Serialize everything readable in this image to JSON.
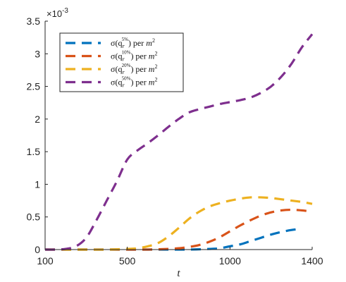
{
  "chart_data": {
    "type": "line",
    "title": "",
    "xlabel": "t",
    "ylabel": "",
    "xlim": [
      100,
      1400
    ],
    "ylim": [
      0,
      0.0035
    ],
    "xticks": [
      100,
      500,
      1000,
      1400
    ],
    "xtick_labels": [
      "100",
      "500",
      "1000",
      "1400"
    ],
    "yticks": [
      0,
      0.0005,
      0.001,
      0.0015,
      0.002,
      0.0025,
      0.003,
      0.0035
    ],
    "ytick_labels": [
      "0",
      "0.5",
      "1",
      "1.5",
      "2",
      "2.5",
      "3",
      "3.5"
    ],
    "y_exponent_label": "×10",
    "y_exponent_power": "-3",
    "grid": false,
    "legend_position": "top-left",
    "series": [
      {
        "name": "σ(q_r^{5%}) per m^2",
        "legend_base": "σ(q",
        "legend_sub": "r",
        "legend_sup": "5%",
        "legend_tail": ") per ",
        "legend_unit": "m",
        "legend_unit_sup": "2",
        "color": "#0072BD",
        "x": [
          100,
          200,
          300,
          400,
          500,
          600,
          700,
          800,
          900,
          950,
          1000,
          1050,
          1100,
          1150,
          1200,
          1250,
          1300,
          1350
        ],
        "y": [
          0,
          0,
          0,
          0,
          0,
          0,
          0,
          0,
          1e-05,
          2e-05,
          5e-05,
          8e-05,
          0.00013,
          0.00018,
          0.00023,
          0.00027,
          0.0003,
          0.00032
        ]
      },
      {
        "name": "σ(q_r^{10%}) per m^2",
        "legend_base": "σ(q",
        "legend_sub": "r",
        "legend_sup": "10%",
        "legend_tail": ") per ",
        "legend_unit": "m",
        "legend_unit_sup": "2",
        "color": "#D95319",
        "x": [
          100,
          200,
          300,
          400,
          500,
          600,
          700,
          750,
          800,
          850,
          900,
          950,
          1000,
          1050,
          1100,
          1150,
          1200,
          1250,
          1300,
          1350,
          1400
        ],
        "y": [
          0,
          0,
          0,
          0,
          0,
          0,
          1e-05,
          2e-05,
          4e-05,
          7e-05,
          0.00012,
          0.00019,
          0.00028,
          0.00037,
          0.00045,
          0.00052,
          0.00057,
          0.0006,
          0.00061,
          0.0006,
          0.00058
        ]
      },
      {
        "name": "σ(q_r^{20%}) per m^2",
        "legend_base": "σ(q",
        "legend_sub": "r",
        "legend_sup": "20%",
        "legend_tail": ") per ",
        "legend_unit": "m",
        "legend_unit_sup": "2",
        "color": "#EDB120",
        "x": [
          100,
          200,
          300,
          400,
          500,
          550,
          600,
          650,
          700,
          750,
          800,
          850,
          900,
          950,
          1000,
          1050,
          1100,
          1150,
          1200,
          1250,
          1300,
          1350,
          1400
        ],
        "y": [
          0,
          0,
          0,
          0,
          1e-05,
          2e-05,
          5e-05,
          0.0001,
          0.0002,
          0.00033,
          0.00047,
          0.00058,
          0.00066,
          0.00071,
          0.00075,
          0.00078,
          0.0008,
          0.0008,
          0.00079,
          0.00077,
          0.00075,
          0.00073,
          0.0007
        ]
      },
      {
        "name": "σ(q_r^{50%}) per m^2",
        "legend_base": "σ(q",
        "legend_sub": "r",
        "legend_sup": "50%",
        "legend_tail": ") per ",
        "legend_unit": "m",
        "legend_unit_sup": "2",
        "color": "#7E2F8E",
        "x": [
          100,
          150,
          200,
          250,
          300,
          350,
          400,
          450,
          500,
          550,
          600,
          650,
          700,
          750,
          800,
          850,
          900,
          950,
          1000,
          1050,
          1100,
          1150,
          1200,
          1250,
          1300,
          1350,
          1400
        ],
        "y": [
          0,
          0,
          1e-05,
          5e-05,
          0.00018,
          0.00045,
          0.00075,
          0.00105,
          0.00138,
          0.00152,
          0.00163,
          0.00175,
          0.00188,
          0.002,
          0.0021,
          0.00215,
          0.00219,
          0.00223,
          0.00226,
          0.00229,
          0.00233,
          0.0024,
          0.0025,
          0.00265,
          0.00285,
          0.0031,
          0.0033
        ]
      }
    ]
  }
}
